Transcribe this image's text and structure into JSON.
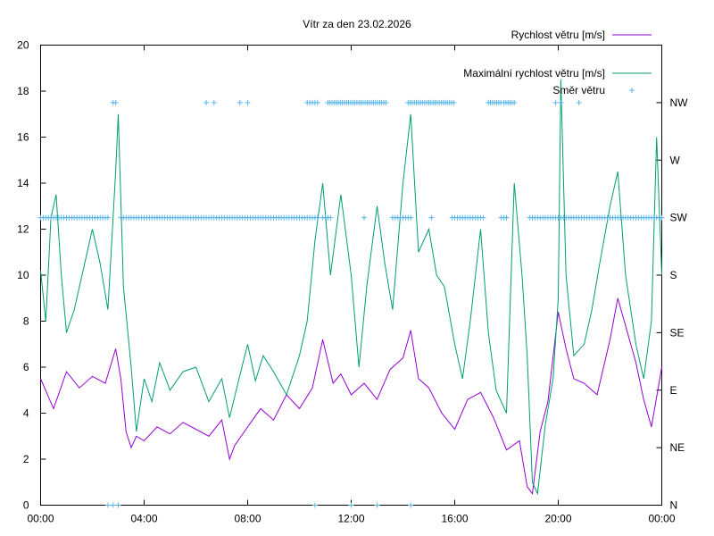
{
  "chart_data": {
    "type": "line",
    "title": "Vítr za den 23.02.2026",
    "x_ticks": [
      "00:00",
      "04:00",
      "08:00",
      "12:00",
      "16:00",
      "20:00",
      "00:00"
    ],
    "x_range_hours": [
      0,
      24
    ],
    "y_left": {
      "range": [
        0,
        20
      ],
      "ticks": [
        "0",
        "2",
        "4",
        "6",
        "8",
        "10",
        "12",
        "14",
        "16",
        "18",
        "20"
      ]
    },
    "y_right": {
      "range": [
        0,
        8
      ],
      "ticks": [
        "N",
        "NE",
        "E",
        "SE",
        "S",
        "SW",
        "W",
        "NW"
      ]
    },
    "legend_position": "top-right",
    "series": [
      {
        "name": "Rychlost větru [m/s]",
        "color": "#9400d3",
        "axis": "left",
        "style": "line",
        "x": [
          0,
          0.5,
          1,
          1.5,
          2,
          2.5,
          2.9,
          3.1,
          3.3,
          3.5,
          3.7,
          4,
          4.5,
          5,
          5.5,
          6,
          6.5,
          7,
          7.3,
          7.5,
          8,
          8.5,
          9,
          9.5,
          10,
          10.5,
          10.9,
          11.3,
          11.6,
          12,
          12.5,
          13,
          13.5,
          14,
          14.3,
          14.6,
          15,
          15.5,
          16,
          16.5,
          17,
          17.5,
          18,
          18.5,
          18.8,
          19,
          19.3,
          19.6,
          20,
          20.3,
          20.6,
          21,
          21.5,
          22,
          22.3,
          22.6,
          23,
          23.3,
          23.6,
          24
        ],
        "values": [
          5.5,
          4.2,
          5.8,
          5.1,
          5.6,
          5.3,
          6.8,
          5.5,
          3.2,
          2.5,
          3.0,
          2.8,
          3.4,
          3.1,
          3.6,
          3.3,
          3.0,
          3.7,
          2.0,
          2.6,
          3.4,
          4.2,
          3.7,
          4.8,
          4.2,
          5.1,
          7.2,
          5.3,
          5.7,
          4.8,
          5.3,
          4.6,
          5.9,
          6.4,
          7.6,
          5.5,
          5.1,
          4.0,
          3.3,
          4.6,
          4.9,
          3.8,
          2.4,
          2.8,
          0.8,
          0.5,
          3.2,
          4.5,
          8.4,
          6.8,
          5.5,
          5.3,
          4.8,
          7.2,
          9.0,
          7.8,
          6.2,
          4.6,
          3.4,
          6.0
        ]
      },
      {
        "name": "Maximální rychlost větru [m/s]",
        "color": "#009e73",
        "axis": "left",
        "style": "line",
        "x": [
          0,
          0.2,
          0.4,
          0.6,
          0.8,
          1,
          1.3,
          1.6,
          2,
          2.3,
          2.6,
          2.9,
          3,
          3.2,
          3.5,
          3.7,
          4,
          4.3,
          4.6,
          5,
          5.5,
          6,
          6.5,
          7,
          7.3,
          7.6,
          8,
          8.3,
          8.6,
          9,
          9.5,
          10,
          10.3,
          10.6,
          10.9,
          11.2,
          11.6,
          12,
          12.3,
          12.6,
          13,
          13.3,
          13.6,
          14,
          14.3,
          14.6,
          15,
          15.3,
          15.6,
          16,
          16.3,
          16.6,
          17,
          17.3,
          17.6,
          18,
          18.3,
          18.6,
          18.8,
          19,
          19.2,
          19.5,
          19.8,
          20,
          20.1,
          20.3,
          20.6,
          21,
          21.3,
          21.6,
          22,
          22.3,
          22.6,
          23,
          23.3,
          23.6,
          23.8,
          24
        ],
        "values": [
          10.2,
          8.0,
          12.5,
          13.5,
          10.0,
          7.5,
          8.5,
          10.0,
          12.0,
          10.5,
          8.5,
          14.5,
          17.0,
          9.5,
          6.0,
          3.2,
          5.5,
          4.5,
          6.2,
          5.0,
          5.8,
          6.0,
          4.5,
          5.5,
          3.8,
          5.2,
          7.0,
          5.4,
          6.5,
          5.8,
          4.8,
          6.5,
          8.0,
          11.5,
          14.0,
          10.0,
          13.5,
          10.0,
          6.0,
          9.5,
          13.0,
          10.5,
          8.5,
          14.0,
          17.0,
          11.0,
          12.0,
          10.0,
          9.5,
          7.0,
          5.5,
          8.0,
          12.0,
          7.5,
          5.0,
          4.0,
          14.0,
          10.0,
          6.5,
          1.0,
          0.5,
          3.5,
          5.5,
          9.0,
          18.5,
          10.0,
          6.5,
          7.0,
          8.5,
          10.5,
          13.0,
          14.5,
          10.0,
          7.0,
          5.5,
          8.0,
          16.0,
          10.0
        ]
      },
      {
        "name": "Směr větru",
        "color": "#56b4e9",
        "axis": "right",
        "style": "points",
        "dense_runs": [
          {
            "from": 0.0,
            "to": 2.6,
            "step": 0.1,
            "direction": "SW"
          },
          {
            "from": 3.1,
            "to": 10.7,
            "step": 0.1,
            "direction": "SW"
          },
          {
            "from": 10.9,
            "to": 11.2,
            "step": 0.1,
            "direction": "SW"
          },
          {
            "from": 13.6,
            "to": 14.3,
            "step": 0.1,
            "direction": "SW"
          },
          {
            "from": 15.9,
            "to": 17.1,
            "step": 0.1,
            "direction": "SW"
          },
          {
            "from": 17.8,
            "to": 18.0,
            "step": 0.1,
            "direction": "SW"
          },
          {
            "from": 18.9,
            "to": 24.0,
            "step": 0.1,
            "direction": "SW"
          },
          {
            "from": 10.3,
            "to": 10.7,
            "step": 0.1,
            "direction": "NW"
          },
          {
            "from": 11.1,
            "to": 13.4,
            "step": 0.08,
            "direction": "NW"
          },
          {
            "from": 14.2,
            "to": 16.0,
            "step": 0.08,
            "direction": "NW"
          },
          {
            "from": 17.3,
            "to": 17.8,
            "step": 0.08,
            "direction": "NW"
          },
          {
            "from": 17.9,
            "to": 18.3,
            "step": 0.08,
            "direction": "NW"
          }
        ],
        "points_x": [
          2.8,
          2.9,
          6.4,
          6.7,
          7.7,
          8.0,
          12.5,
          15.1,
          19.9,
          20.1,
          20.8,
          2.6,
          2.8,
          3.0,
          10.6,
          12.0,
          13.0,
          14.3
        ],
        "points_dir": [
          "NW",
          "NW",
          "NW",
          "NW",
          "NW",
          "NW",
          "SW",
          "SW",
          "NW",
          "NW",
          "NW",
          "N",
          "N",
          "N",
          "N",
          "N",
          "N",
          "N"
        ]
      }
    ]
  }
}
